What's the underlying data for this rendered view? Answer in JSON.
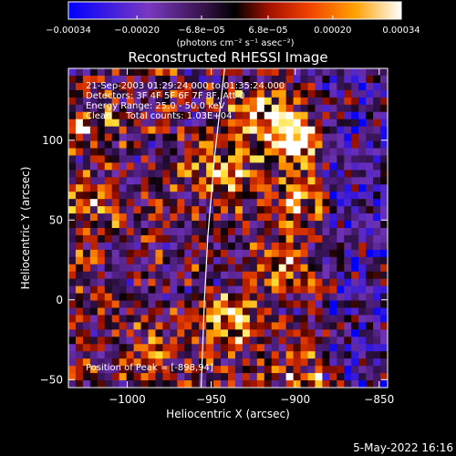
{
  "chart_data": {
    "type": "heatmap",
    "title": "Reconstructed RHESSI Image",
    "xlabel": "Heliocentric X (arcsec)",
    "ylabel": "Heliocentric Y (arcsec)",
    "xlim": [
      -1035,
      -845
    ],
    "ylim": [
      -55,
      145
    ],
    "x_ticks": [
      -1000,
      -950,
      -900,
      -850
    ],
    "x_tick_labels": [
      "−1000",
      "−950",
      "−900",
      "−850"
    ],
    "y_ticks": [
      -50,
      0,
      50,
      100
    ],
    "y_tick_labels": [
      "−50",
      "0",
      "50",
      "100"
    ],
    "colorbar": {
      "range": [
        -0.00034,
        0.00034
      ],
      "ticks": [
        -0.00034,
        -0.0002,
        -6.8e-05,
        6.8e-05,
        0.0002,
        0.00034
      ],
      "tick_labels": [
        "−0.00034",
        "−0.00020",
        "−6.8e−05",
        "6.8e−05",
        "0.00020",
        "0.00034"
      ],
      "unit_label": "(photons cm⁻² s⁻¹ asec⁻²)"
    },
    "annotations": [
      "21-Sep-2003 01:29:24.000 to 01:35:24.000",
      "Detectors: 3F 4F 5F 6F 7F 8F, Att 0",
      "Energy Range: 25.0 - 50.0 keV",
      "Clean     Total counts: 1.03E+04"
    ],
    "peak_label": "Position of Peak = [-898,94]",
    "peak_position": [
      -898,
      94
    ],
    "limb_curve": [
      [
        -942,
        145
      ],
      [
        -948,
        90
      ],
      [
        -952,
        40
      ],
      [
        -954,
        0
      ],
      [
        -956,
        -55
      ]
    ],
    "hotspots": [
      {
        "x": -900,
        "y": 100,
        "v": 0.00034
      },
      {
        "x": -925,
        "y": 118,
        "v": 0.00026
      },
      {
        "x": -942,
        "y": 80,
        "v": 0.00022
      },
      {
        "x": -1020,
        "y": 60,
        "v": 0.00018
      },
      {
        "x": -1025,
        "y": 110,
        "v": 0.00016
      },
      {
        "x": -900,
        "y": 60,
        "v": 0.0002
      },
      {
        "x": -905,
        "y": 20,
        "v": 0.00018
      },
      {
        "x": -935,
        "y": -15,
        "v": 0.00024
      },
      {
        "x": -985,
        "y": -30,
        "v": 0.00012
      },
      {
        "x": -895,
        "y": -50,
        "v": 0.00016
      }
    ]
  },
  "footer": {
    "date": "5-May-2022 16:16"
  },
  "colors": {
    "background": "#000000",
    "foreground": "#ffffff",
    "colormap": [
      "#0000ff",
      "#5a2ca0",
      "#3a1a50",
      "#000000",
      "#8a1000",
      "#e03000",
      "#ff8000",
      "#ffe040",
      "#ffffff"
    ]
  }
}
